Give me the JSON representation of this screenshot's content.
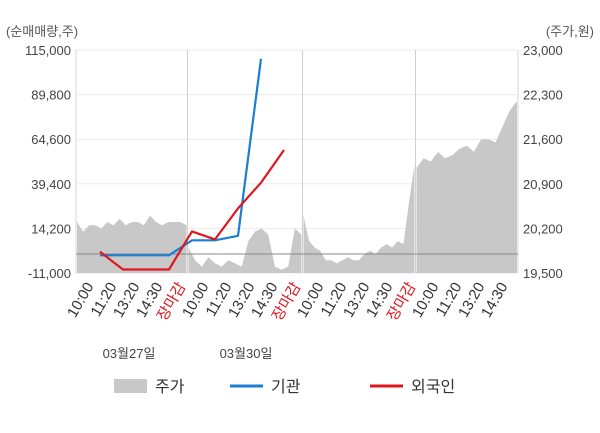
{
  "chart_data": {
    "type": "line",
    "left_axis_label": "(순매매량,주)",
    "right_axis_label": "(주가,원)",
    "left_ticks": [
      "115,000",
      "89,800",
      "64,600",
      "39,400",
      "14,200",
      "-11,000"
    ],
    "right_ticks": [
      "23,000",
      "22,300",
      "21,600",
      "20,900",
      "20,200",
      "19,500"
    ],
    "left_ylim": [
      -11000,
      115000
    ],
    "right_ylim": [
      19500,
      23000
    ],
    "x_tick_labels": [
      "10:00",
      "11:20",
      "13:20",
      "14:30",
      "장마감",
      "10:00",
      "11:20",
      "13:20",
      "14:30",
      "장마감",
      "10:00",
      "11:20",
      "13:20",
      "14:30",
      "장마감",
      "10:00",
      "11:20",
      "13:20",
      "14:30"
    ],
    "date_labels": [
      "03월27일",
      "03월30일"
    ],
    "series": [
      {
        "name": "기관",
        "axis": "left",
        "color": "#1a7fd1",
        "values": [
          -1000,
          -1000,
          -1000,
          -1000,
          7500,
          7500,
          10000,
          110000
        ]
      },
      {
        "name": "외국인",
        "axis": "left",
        "color": "#e0161e",
        "values": [
          1000,
          -9000,
          -9000,
          -9000,
          12500,
          8000,
          25500,
          40000,
          58500
        ]
      },
      {
        "name": "주가",
        "axis": "right",
        "type": "area",
        "color": "#c8c8c8",
        "values": [
          20300,
          20150,
          20250,
          20250,
          20200,
          20300,
          20250,
          20350,
          20250,
          20300,
          20300,
          20250,
          20400,
          20300,
          20250,
          20300,
          20300,
          20300,
          20250,
          19900,
          19700,
          19600,
          19750,
          19650,
          19600,
          19700,
          19650,
          19600,
          20000,
          20150,
          20200,
          20100,
          19600,
          19550,
          19600,
          20200,
          20100,
          20400,
          20000,
          19900,
          19850,
          19700,
          19700,
          19650,
          19700,
          19750,
          19700,
          19700,
          19800,
          19850,
          19800,
          19900,
          19950,
          19900,
          20000,
          19950,
          20600,
          21200,
          21150,
          21300,
          21250,
          21400,
          21300,
          21350,
          21450,
          21500,
          21400,
          21600,
          21600,
          21550,
          21800,
          22050,
          22200
        ]
      }
    ]
  },
  "legend": [
    {
      "label": "주가",
      "color": "#c8c8c8",
      "kind": "box"
    },
    {
      "label": "기관",
      "color": "#1a7fd1",
      "kind": "line"
    },
    {
      "label": "외국인",
      "color": "#e0161e",
      "kind": "line"
    }
  ]
}
